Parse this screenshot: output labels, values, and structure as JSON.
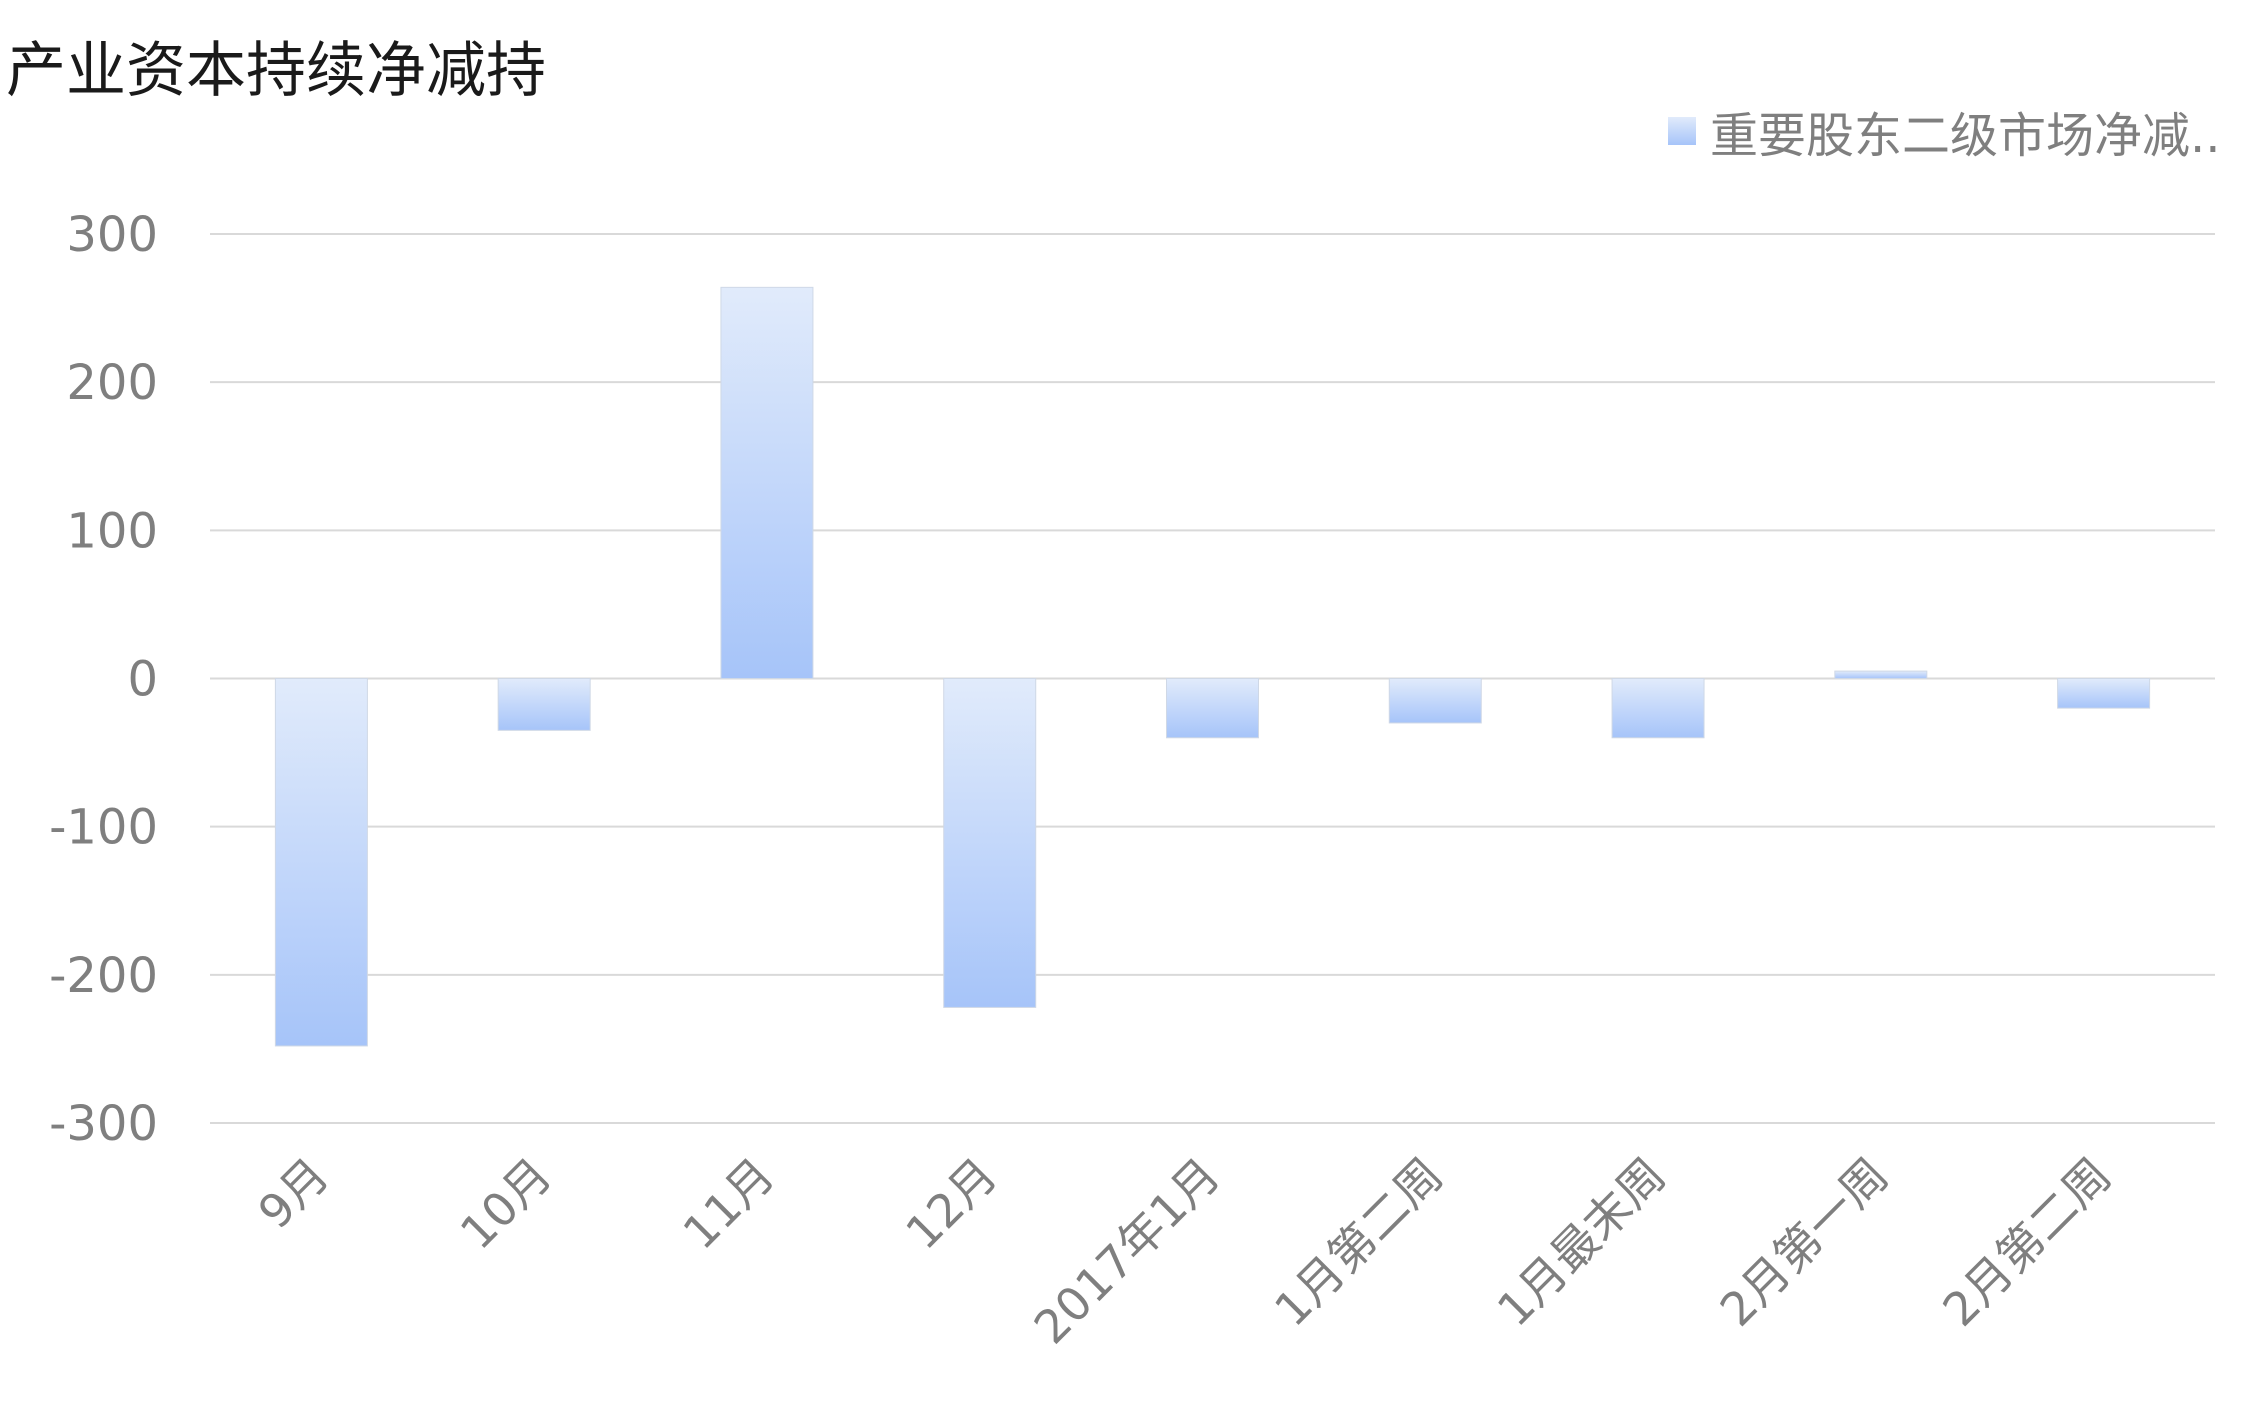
{
  "chart_data": {
    "type": "bar",
    "title": "产业资本持续净减持",
    "categories": [
      "9月",
      "10月",
      "11月",
      "12月",
      "2017年1月",
      "1月第二周",
      "1月最末周",
      "2月第一周",
      "2月第二周"
    ],
    "series": [
      {
        "name": "重要股东二级市场净减..",
        "values": [
          -248,
          -35,
          264,
          -222,
          -40,
          -30,
          -40,
          5,
          -20
        ]
      }
    ],
    "ylim": [
      -300,
      300
    ],
    "yticks": [
      300,
      200,
      100,
      0,
      -100,
      -200,
      -300
    ],
    "grid": true,
    "legend_position": "top-right",
    "colors": {
      "bar_light": "#e1ebfb",
      "bar_dark": "#a6c4f9",
      "grid": "#d9d9d9",
      "tick_text": "#7f7f7f",
      "title": "#1a1a1a"
    }
  }
}
